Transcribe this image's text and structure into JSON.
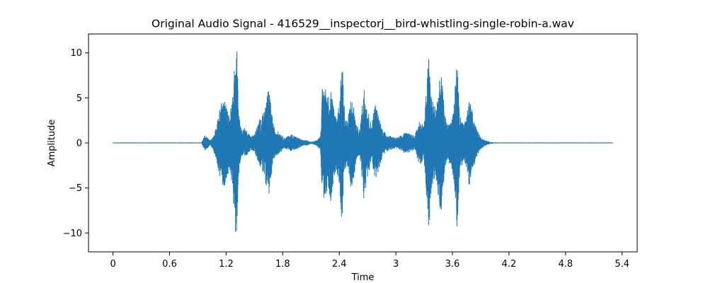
{
  "chart_data": {
    "type": "line",
    "title": "Original Audio Signal - 416529__inspectorj__bird-whistling-single-robin-a.wav",
    "xlabel": "Time",
    "ylabel": "Amplitude",
    "xlim": [
      -0.26,
      5.56
    ],
    "ylim": [
      -12.1,
      12.1
    ],
    "xticks": [
      0,
      0.6,
      1.2,
      1.8,
      2.4,
      3,
      3.6,
      4.2,
      4.8,
      5.4
    ],
    "xtick_labels": [
      "0",
      "0.6",
      "1.2",
      "1.8",
      "2.4",
      "3",
      "3.6",
      "4.2",
      "4.8",
      "5.4"
    ],
    "yticks": [
      -10,
      -5,
      0,
      5,
      10
    ],
    "ytick_labels": [
      "−10",
      "−5",
      "0",
      "5",
      "10"
    ],
    "grid": false,
    "series": [
      {
        "color": "#1f77b4",
        "x": [
          0.0,
          0.94,
          0.97,
          1.0,
          1.03,
          1.06,
          1.1,
          1.14,
          1.18,
          1.2,
          1.23,
          1.26,
          1.3,
          1.31,
          1.32,
          1.33,
          1.35,
          1.37,
          1.4,
          1.43,
          1.46,
          1.5,
          1.55,
          1.6,
          1.65,
          1.68,
          1.7,
          1.72,
          1.75,
          1.78,
          1.82,
          1.86,
          1.9,
          1.94,
          1.98,
          2.02,
          2.06,
          2.1,
          2.16,
          2.2,
          2.22,
          2.25,
          2.28,
          2.31,
          2.34,
          2.37,
          2.4,
          2.43,
          2.46,
          2.49,
          2.52,
          2.55,
          2.58,
          2.62,
          2.66,
          2.7,
          2.74,
          2.78,
          2.82,
          2.86,
          2.9,
          2.94,
          2.98,
          3.02,
          3.06,
          3.1,
          3.15,
          3.2,
          3.25,
          3.3,
          3.33,
          3.35,
          3.38,
          3.42,
          3.45,
          3.48,
          3.52,
          3.55,
          3.58,
          3.6,
          3.62,
          3.65,
          3.68,
          3.72,
          3.75,
          3.78,
          3.82,
          3.86,
          3.9,
          3.95,
          4.0,
          4.05,
          5.3
        ],
        "amplitude": [
          0.05,
          0.05,
          0.9,
          0.6,
          0.3,
          0.7,
          2.0,
          4.3,
          5.0,
          4.2,
          3.0,
          4.5,
          10.0,
          10.9,
          9.5,
          4.0,
          2.0,
          1.5,
          1.7,
          1.2,
          0.8,
          1.0,
          2.5,
          3.5,
          6.0,
          4.0,
          2.0,
          1.5,
          1.3,
          1.0,
          0.6,
          0.8,
          1.0,
          0.7,
          0.5,
          0.3,
          0.3,
          0.1,
          0.3,
          0.8,
          6.0,
          6.5,
          5.0,
          6.5,
          4.0,
          3.0,
          4.5,
          9.5,
          3.0,
          2.5,
          5.0,
          4.5,
          2.0,
          1.5,
          6.5,
          4.0,
          2.0,
          4.5,
          3.0,
          1.5,
          1.0,
          0.8,
          0.7,
          0.6,
          0.9,
          1.2,
          1.0,
          0.8,
          2.5,
          2.0,
          7.0,
          10.2,
          5.0,
          4.0,
          6.0,
          8.0,
          3.0,
          2.0,
          2.5,
          3.0,
          5.0,
          9.5,
          3.0,
          2.0,
          3.0,
          5.0,
          3.0,
          1.5,
          0.7,
          0.3,
          0.1,
          0.05,
          0.05
        ]
      }
    ]
  }
}
